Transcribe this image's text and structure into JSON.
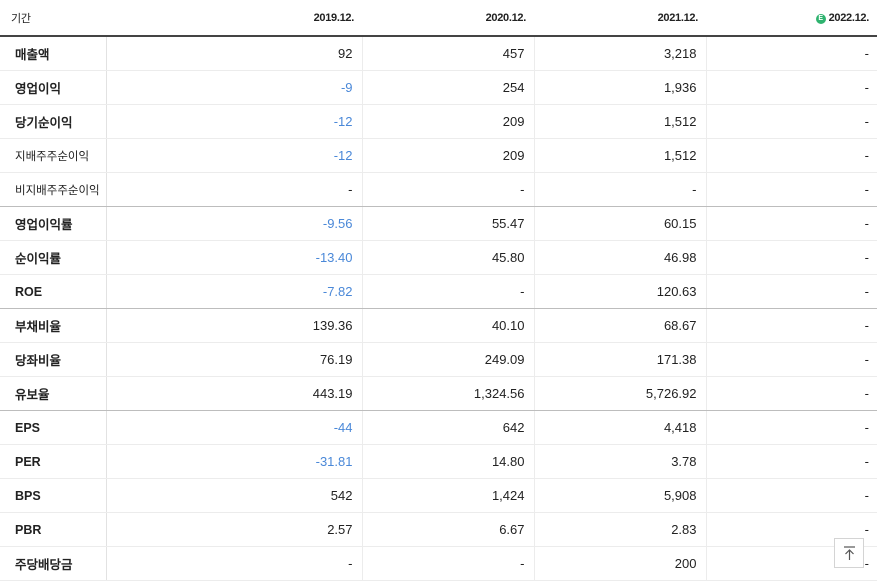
{
  "header": {
    "period_label": "기간",
    "columns": [
      "2019.12.",
      "2020.12.",
      "2021.12.",
      "2022.12."
    ],
    "estimate_icon": "estimate-icon",
    "estimate_icon_glyph": "E"
  },
  "rows": [
    {
      "label": "매출액",
      "values": [
        "92",
        "457",
        "3,218",
        "-"
      ]
    },
    {
      "label": "영업이익",
      "values": [
        "-9",
        "254",
        "1,936",
        "-"
      ]
    },
    {
      "label": "당기순이익",
      "values": [
        "-12",
        "209",
        "1,512",
        "-"
      ]
    },
    {
      "label": "지배주주순이익",
      "values": [
        "-12",
        "209",
        "1,512",
        "-"
      ]
    },
    {
      "label": "비지배주주순이익",
      "values": [
        "-",
        "-",
        "-",
        "-"
      ]
    },
    {
      "label": "영업이익률",
      "values": [
        "-9.56",
        "55.47",
        "60.15",
        "-"
      ]
    },
    {
      "label": "순이익률",
      "values": [
        "-13.40",
        "45.80",
        "46.98",
        "-"
      ]
    },
    {
      "label": "ROE",
      "values": [
        "-7.82",
        "-",
        "120.63",
        "-"
      ]
    },
    {
      "label": "부채비율",
      "values": [
        "139.36",
        "40.10",
        "68.67",
        "-"
      ]
    },
    {
      "label": "당좌비율",
      "values": [
        "76.19",
        "249.09",
        "171.38",
        "-"
      ]
    },
    {
      "label": "유보율",
      "values": [
        "443.19",
        "1,324.56",
        "5,726.92",
        "-"
      ]
    },
    {
      "label": "EPS",
      "values": [
        "-44",
        "642",
        "4,418",
        "-"
      ]
    },
    {
      "label": "PER",
      "values": [
        "-31.81",
        "14.80",
        "3.78",
        "-"
      ]
    },
    {
      "label": "BPS",
      "values": [
        "542",
        "1,424",
        "5,908",
        "-"
      ]
    },
    {
      "label": "PBR",
      "values": [
        "2.57",
        "6.67",
        "2.83",
        "-"
      ]
    },
    {
      "label": "주당배당금",
      "values": [
        "-",
        "-",
        "200",
        "-"
      ]
    }
  ],
  "colors": {
    "negative": "#4a88d8",
    "estimate_badge": "#2fb36f"
  },
  "scroll_top_icon": "arrow-up-to-top-icon"
}
